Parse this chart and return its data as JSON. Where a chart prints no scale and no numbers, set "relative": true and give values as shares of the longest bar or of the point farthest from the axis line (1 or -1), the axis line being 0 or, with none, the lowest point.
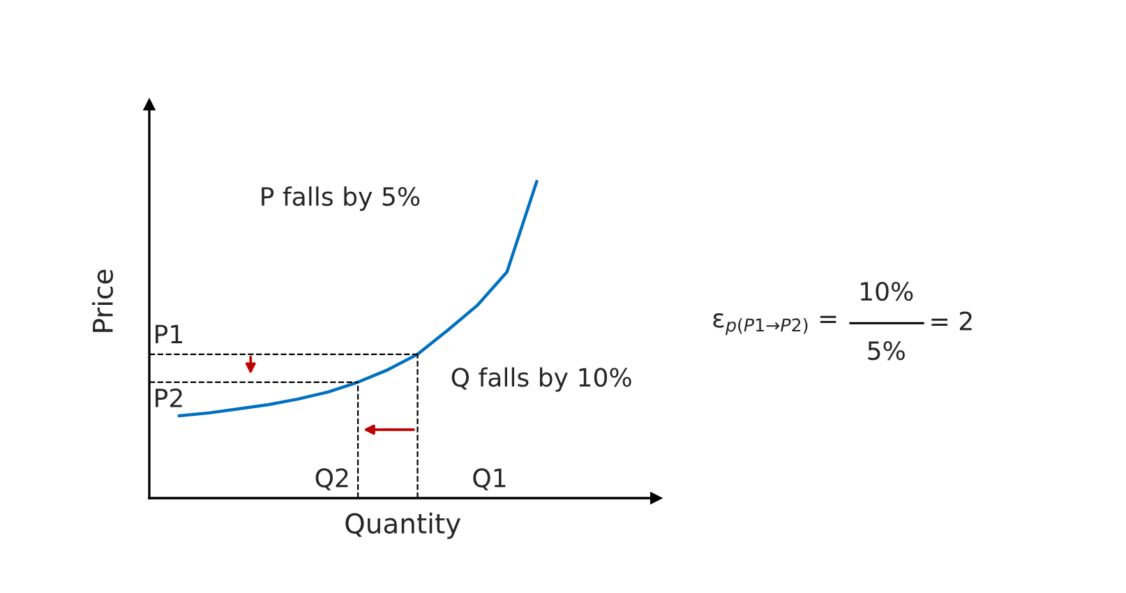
{
  "chart_data": {
    "type": "line",
    "relative": true,
    "xlabel": "Quantity",
    "ylabel": "Price",
    "line_style": "solid",
    "categories": [
      null,
      null,
      null,
      null,
      null,
      null,
      null,
      null,
      null,
      null,
      null,
      null,
      null,
      null,
      null,
      null,
      null,
      null
    ],
    "series": [
      {
        "color": "#0070c0",
        "values": [
          null,
          0.26,
          0.269,
          0.282,
          0.295,
          0.313,
          0.335,
          0.366,
          0.405,
          0.454,
          0.529,
          0.608,
          0.714,
          1.0,
          null,
          null,
          null,
          null
        ]
      }
    ],
    "ref_lines": [
      {
        "axis": "y",
        "value": 0.366,
        "label": "P2",
        "color": "#000000",
        "line_style": "dashed"
      },
      {
        "axis": "y",
        "value": 0.454,
        "label": "P1",
        "color": "#000000",
        "line_style": "dashed"
      }
    ],
    "annotations": [
      "Q2",
      "Q1",
      "P falls by 5%",
      "Q falls by 10%",
      "ε$_{p(P1→P2)}$ =",
      "10%",
      "5%",
      "= 2"
    ]
  }
}
